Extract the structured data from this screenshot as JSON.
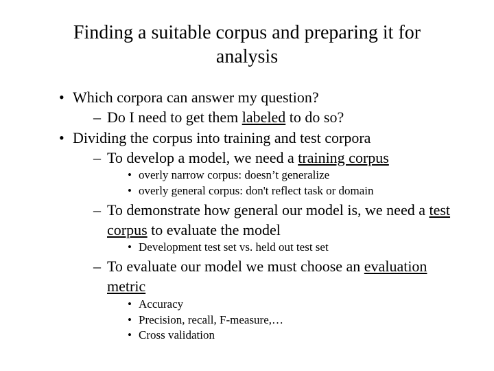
{
  "title": "Finding a suitable corpus and preparing it for analysis",
  "b1": {
    "text": "Which corpora can answer my question?",
    "s1": {
      "pre": "Do I need to get them ",
      "u": "labeled",
      "post": " to do so?"
    }
  },
  "b2": {
    "text": "Dividing the corpus into training and test corpora",
    "s1": {
      "pre": "To develop a model, we need a ",
      "u": "training corpus",
      "post": "",
      "n1": "overly narrow corpus: doesn’t generalize",
      "n2": "overly general corpus:  don't reflect task or domain"
    },
    "s2": {
      "pre": "To demonstrate how general our model is, we need a ",
      "u": "test corpus",
      "post": " to evaluate the model",
      "n1": "Development test set vs. held out test set"
    },
    "s3": {
      "pre": "To evaluate our model we must choose an ",
      "u": "evaluation metric",
      "post": "",
      "n1": "Accuracy",
      "n2": "Precision, recall, F-measure,…",
      "n3": "Cross validation"
    }
  },
  "colors": {
    "text": "#000000",
    "background": "#ffffff"
  },
  "typography": {
    "font_family": "Garamond / Times",
    "title_fontsize_pt": 28,
    "body_fontsize_pt": 22,
    "sub_fontsize_pt": 17
  }
}
